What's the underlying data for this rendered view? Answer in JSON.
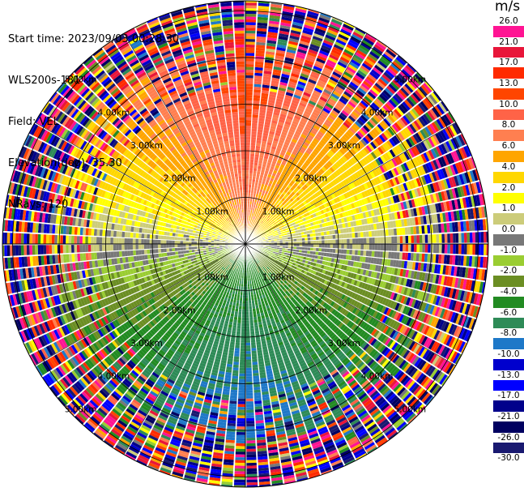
{
  "header": {
    "start_time": "Start time: 2023/09/03 00:28:30",
    "site": "WLS200s-181",
    "field": "Field: VEL",
    "elevation": "Elevation(deg): 35.30",
    "nrays": "NRays: 120"
  },
  "colorbar": {
    "unit": "m/s",
    "ticks": [
      "26.0",
      "21.0",
      "17.0",
      "13.0",
      "10.0",
      "8.0",
      "6.0",
      "4.0",
      "2.0",
      "1.0",
      "0.0",
      "-1.0",
      "-2.0",
      "-4.0",
      "-6.0",
      "-8.0",
      "-10.0",
      "-13.0",
      "-17.0",
      "-21.0",
      "-26.0",
      "-30.0"
    ],
    "colors": [
      "#ff1493",
      "#e8163a",
      "#ff2a00",
      "#ff4500",
      "#ff6347",
      "#ff7f50",
      "#ffa500",
      "#ffd700",
      "#ffff00",
      "#cccc7a",
      "#787878",
      "#9acd32",
      "#6b8e23",
      "#228b22",
      "#2e8b57",
      "#1e78c8",
      "#0000cd",
      "#0000ff",
      "#00008b",
      "#000060",
      "#191970"
    ]
  },
  "chart_data": {
    "type": "ppi_polar",
    "field": "VEL",
    "unit": "m/s",
    "rings": [
      "1.00km",
      "2.00km",
      "3.00km",
      "4.00km",
      "5.00km"
    ],
    "range_km_max": 5.3,
    "n_rays": 120,
    "pattern": [
      {
        "azimuth_deg": 0,
        "vel_ms": 11
      },
      {
        "azimuth_deg": 30,
        "vel_ms": 7
      },
      {
        "azimuth_deg": 60,
        "vel_ms": 3
      },
      {
        "azimuth_deg": 90,
        "vel_ms": 0
      },
      {
        "azimuth_deg": 120,
        "vel_ms": -4
      },
      {
        "azimuth_deg": 150,
        "vel_ms": -7
      },
      {
        "azimuth_deg": 180,
        "vel_ms": -9
      },
      {
        "azimuth_deg": 210,
        "vel_ms": -7
      },
      {
        "azimuth_deg": 240,
        "vel_ms": -4
      },
      {
        "azimuth_deg": 270,
        "vel_ms": 0
      },
      {
        "azimuth_deg": 300,
        "vel_ms": 3
      },
      {
        "azimuth_deg": 330,
        "vel_ms": 7
      }
    ]
  }
}
